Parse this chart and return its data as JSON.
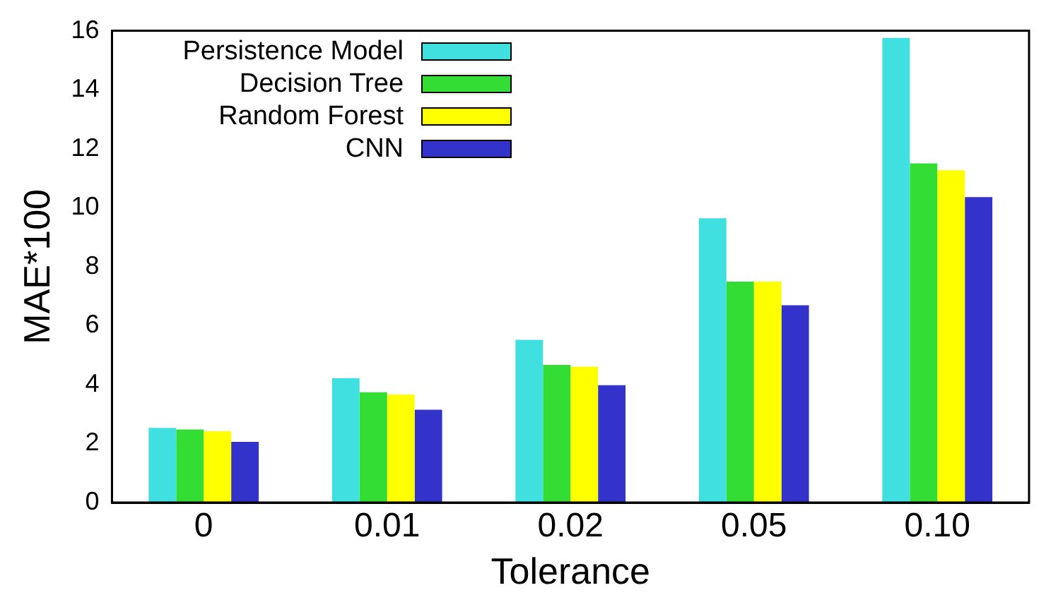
{
  "chart_data": {
    "type": "bar",
    "xlabel": "Tolerance",
    "ylabel": "MAE*100",
    "categories": [
      "0",
      "0.01",
      "0.02",
      "0.05",
      "0.10"
    ],
    "series": [
      {
        "name": "Persistence Model",
        "color": "#40e0e0",
        "values": [
          2.53,
          4.22,
          5.52,
          9.64,
          15.76
        ]
      },
      {
        "name": "Decision Tree",
        "color": "#33dd33",
        "values": [
          2.48,
          3.74,
          4.67,
          7.49,
          11.5
        ]
      },
      {
        "name": "Random Forest",
        "color": "#ffff00",
        "values": [
          2.42,
          3.66,
          4.61,
          7.49,
          11.27
        ]
      },
      {
        "name": "CNN",
        "color": "#3333cc",
        "values": [
          2.06,
          3.15,
          3.98,
          6.69,
          10.36
        ]
      }
    ],
    "ylim": [
      0,
      16
    ],
    "yticks": [
      0,
      2,
      4,
      6,
      8,
      10,
      12,
      14,
      16
    ],
    "grid": false,
    "legend": "top left"
  }
}
